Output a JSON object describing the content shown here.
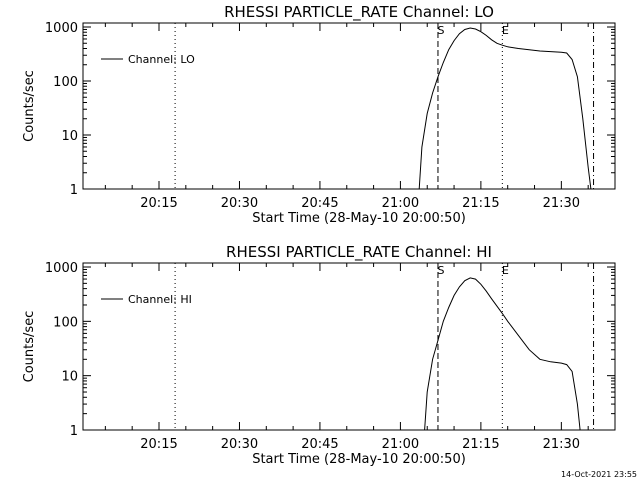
{
  "chart_data": [
    {
      "type": "line",
      "title": "RHESSI PARTICLE_RATE Channel: LO",
      "xlabel": "Start Time (28-May-10 20:00:50)",
      "ylabel": "Counts/sec",
      "yscale": "log",
      "ylim": [
        1,
        1000
      ],
      "xlim": [
        "20:00:50",
        "21:40:00"
      ],
      "x_ticks": [
        "20:15",
        "20:30",
        "20:45",
        "21:00",
        "21:15",
        "21:30"
      ],
      "y_ticks": [
        "1",
        "10",
        "100",
        "1000"
      ],
      "legend": {
        "position": "top-left",
        "entries": [
          "Channel: LO"
        ]
      },
      "markers": [
        {
          "label": "",
          "time": "20:18",
          "style": "dotted"
        },
        {
          "label": "S",
          "time": "21:07",
          "style": "dashed"
        },
        {
          "label": "E",
          "time": "21:19",
          "style": "dotted"
        },
        {
          "label": "",
          "time": "21:36",
          "style": "dash-dot"
        }
      ],
      "series": [
        {
          "name": "Channel: LO",
          "x": [
            "21:03:30",
            "21:04:00",
            "21:05:00",
            "21:06:00",
            "21:07:00",
            "21:08:00",
            "21:09:00",
            "21:10:00",
            "21:11:00",
            "21:12:00",
            "21:13:00",
            "21:14:00",
            "21:15:00",
            "21:16:00",
            "21:17:00",
            "21:18:00",
            "21:19:00",
            "21:20:00",
            "21:22:00",
            "21:24:00",
            "21:26:00",
            "21:28:00",
            "21:30:00",
            "21:31:00",
            "21:32:00",
            "21:33:00",
            "21:34:00",
            "21:35:00",
            "21:35:30"
          ],
          "y": [
            1,
            6,
            25,
            60,
            120,
            220,
            380,
            560,
            750,
            900,
            960,
            920,
            820,
            700,
            580,
            500,
            460,
            430,
            400,
            380,
            360,
            350,
            340,
            330,
            250,
            120,
            20,
            2.5,
            1
          ]
        }
      ]
    },
    {
      "type": "line",
      "title": "RHESSI PARTICLE_RATE Channel: HI",
      "xlabel": "Start Time (28-May-10 20:00:50)",
      "ylabel": "Counts/sec",
      "yscale": "log",
      "ylim": [
        1,
        1000
      ],
      "xlim": [
        "20:00:50",
        "21:40:00"
      ],
      "x_ticks": [
        "20:15",
        "20:30",
        "20:45",
        "21:00",
        "21:15",
        "21:30"
      ],
      "y_ticks": [
        "1",
        "10",
        "100",
        "1000"
      ],
      "legend": {
        "position": "top-left",
        "entries": [
          "Channel: HI"
        ]
      },
      "markers": [
        {
          "label": "",
          "time": "20:18",
          "style": "dotted"
        },
        {
          "label": "S",
          "time": "21:07",
          "style": "dashed"
        },
        {
          "label": "E",
          "time": "21:19",
          "style": "dotted"
        },
        {
          "label": "",
          "time": "21:36",
          "style": "dash-dot"
        }
      ],
      "series": [
        {
          "name": "Channel: HI",
          "x": [
            "21:04:30",
            "21:05:00",
            "21:06:00",
            "21:07:00",
            "21:08:00",
            "21:09:00",
            "21:10:00",
            "21:11:00",
            "21:12:00",
            "21:13:00",
            "21:14:00",
            "21:15:00",
            "21:16:00",
            "21:17:00",
            "21:18:00",
            "21:19:00",
            "21:20:00",
            "21:22:00",
            "21:24:00",
            "21:26:00",
            "21:28:00",
            "21:30:00",
            "21:31:00",
            "21:32:00",
            "21:33:00",
            "21:33:30"
          ],
          "y": [
            1,
            5,
            20,
            45,
            100,
            180,
            300,
            430,
            560,
            630,
            600,
            480,
            360,
            260,
            190,
            140,
            100,
            55,
            30,
            20,
            18,
            17,
            16,
            12,
            3,
            1
          ]
        }
      ]
    }
  ],
  "footer": {
    "timestamp": "14-Oct-2021 23:55"
  }
}
